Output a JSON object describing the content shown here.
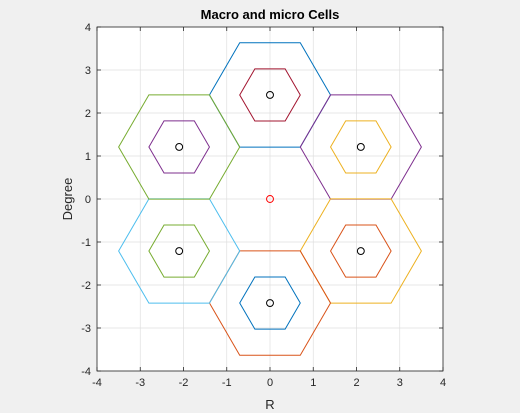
{
  "chart_data": {
    "type": "line",
    "title": "Macro and micro Cells",
    "xlabel": "R",
    "ylabel": "Degree",
    "xlim": [
      -4,
      4
    ],
    "ylim": [
      -4,
      4
    ],
    "xticks": [
      -4,
      -3,
      -2,
      -1,
      0,
      1,
      2,
      3,
      4
    ],
    "yticks": [
      -4,
      -3,
      -2,
      -1,
      0,
      1,
      2,
      3,
      4
    ],
    "xtick_labels": [
      "-4",
      "-3",
      "-2",
      "-1",
      "0",
      "1",
      "2",
      "3",
      "4"
    ],
    "ytick_labels": [
      "-4",
      "-3",
      "-2",
      "-1",
      "0",
      "1",
      "2",
      "3",
      "4"
    ],
    "grid": true,
    "box": true,
    "macro_radius": 1.4,
    "micro_radius": 0.7,
    "marker_radius": 0.08,
    "cells": [
      {
        "center": [
          0,
          2.42
        ],
        "macro_color": "#0072bd",
        "micro_color": "#a2142f"
      },
      {
        "center": [
          2.1,
          1.21
        ],
        "macro_color": "#7e2f8e",
        "micro_color": "#edb120"
      },
      {
        "center": [
          2.1,
          -1.21
        ],
        "macro_color": "#edb120",
        "micro_color": "#d95319"
      },
      {
        "center": [
          0,
          -2.42
        ],
        "macro_color": "#d95319",
        "micro_color": "#0072bd"
      },
      {
        "center": [
          -2.1,
          -1.21
        ],
        "macro_color": "#4dbeee",
        "micro_color": "#77ac30"
      },
      {
        "center": [
          -2.1,
          1.21
        ],
        "macro_color": "#77ac30",
        "micro_color": "#7e2f8e"
      }
    ],
    "center_marker": {
      "center": [
        0,
        0
      ],
      "color": "#ff0000"
    },
    "cell_marker_color": "#000000"
  }
}
